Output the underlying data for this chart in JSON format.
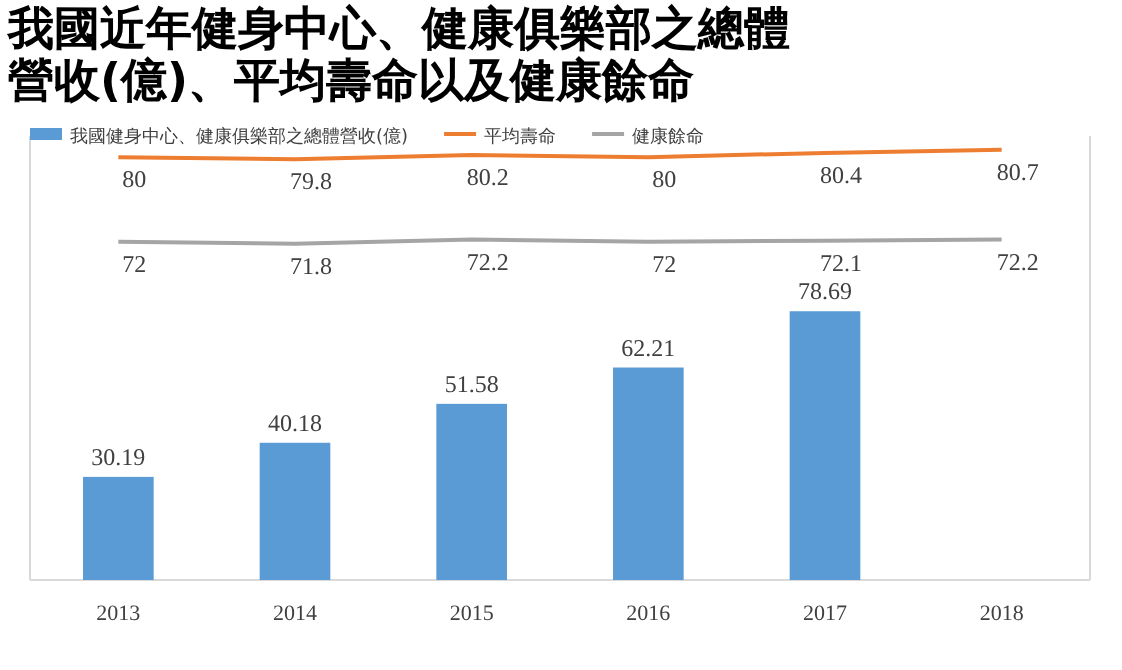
{
  "chart_data": {
    "type": "bar",
    "title": "我國近年健身中心、健康俱樂部之總體營收(億)、平均壽命以及健康餘命",
    "categories": [
      "2013",
      "2014",
      "2015",
      "2016",
      "2017",
      "2018"
    ],
    "series": [
      {
        "name": "我國健身中心、健康俱樂部之總體營收(億)",
        "color": "#5b9bd5",
        "values": [
          30.19,
          40.18,
          51.58,
          62.21,
          78.69,
          null
        ]
      },
      {
        "name": "平均壽命",
        "type": "line",
        "axis": "y2",
        "color": "#ed7d31",
        "values": [
          80,
          79.8,
          80.2,
          80,
          80.4,
          80.7
        ]
      },
      {
        "name": "健康餘命",
        "type": "line",
        "axis": "y2",
        "color": "#a5a5a5",
        "values": [
          72,
          71.8,
          72.2,
          72,
          72.1,
          72.2
        ]
      }
    ],
    "ylim": [
      0,
      130
    ],
    "y2lim": [
      40,
      82
    ],
    "grid": false,
    "data_labels": true,
    "legend": "top left"
  }
}
